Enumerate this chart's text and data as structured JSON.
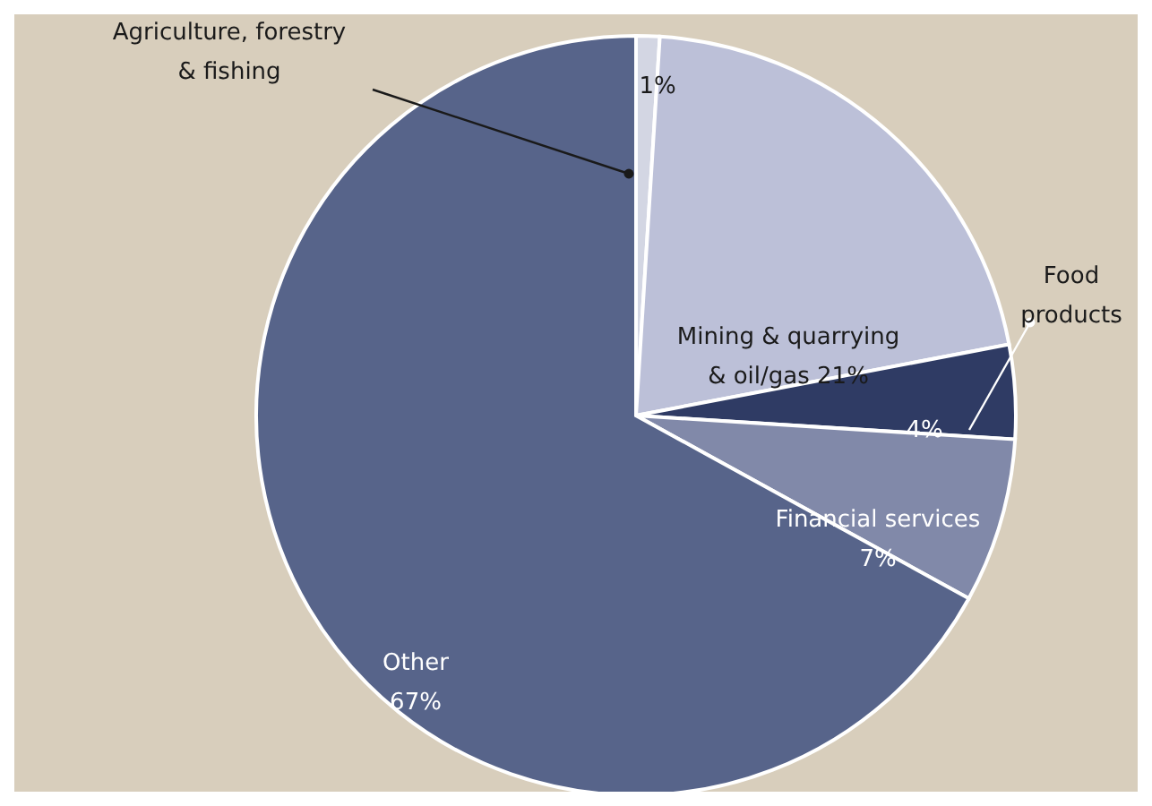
{
  "chart_data": {
    "type": "pie",
    "categories": [
      "Agriculture, forestry & fishing",
      "Mining & quarrying & oil/gas",
      "Food products",
      "Financial services",
      "Other"
    ],
    "values": [
      1,
      21,
      4,
      7,
      67
    ],
    "colors": [
      "#d3d6e3",
      "#bcc0d8",
      "#2f3b64",
      "#8189a9",
      "#57648a"
    ],
    "value_labels": [
      "1%",
      "21%",
      "4%",
      "7%",
      "67%"
    ]
  }
}
